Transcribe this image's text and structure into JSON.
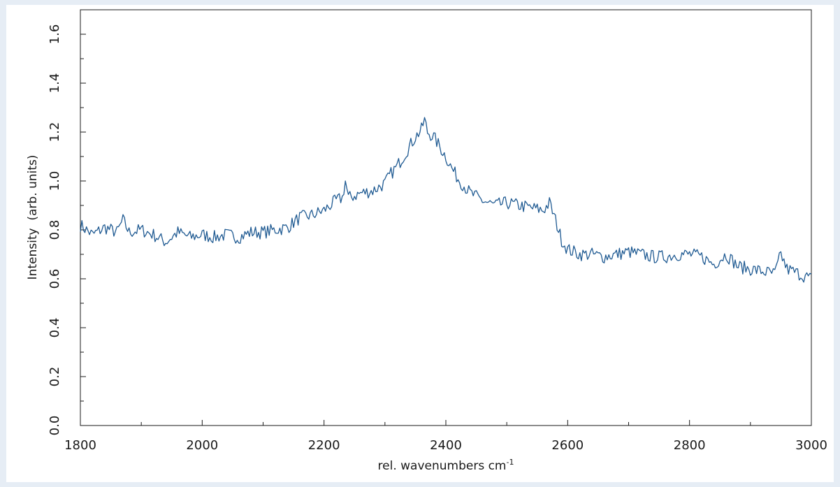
{
  "chart_data": {
    "type": "line",
    "xlabel": "rel. wavenumbers cm",
    "xlabel_sup": "-1",
    "ylabel": "Intensity  (arb. units)",
    "xlim": [
      1800,
      3000
    ],
    "ylim": [
      0.0,
      1.7
    ],
    "x_ticks": [
      "1800",
      "2000",
      "2200",
      "2400",
      "2600",
      "2800",
      "3000"
    ],
    "y_ticks": [
      "0.0",
      "0.2",
      "0.4",
      "0.6",
      "0.8",
      "1.0",
      "1.2",
      "1.4",
      "1.6"
    ],
    "grid": false,
    "line_color": "#1f5a92",
    "series": [
      {
        "x": [
          1800,
          1820,
          1840,
          1860,
          1870,
          1880,
          1900,
          1920,
          1940,
          1950,
          1960,
          1980,
          2000,
          2020,
          2040,
          2060,
          2080,
          2100,
          2120,
          2140,
          2160,
          2180,
          2200,
          2210,
          2220,
          2230,
          2235,
          2240,
          2260,
          2280,
          2300,
          2310,
          2320,
          2330,
          2340,
          2350,
          2360,
          2365,
          2370,
          2380,
          2390,
          2400,
          2410,
          2420,
          2440,
          2460,
          2480,
          2500,
          2520,
          2540,
          2560,
          2570,
          2580,
          2590,
          2600,
          2620,
          2640,
          2660,
          2680,
          2700,
          2720,
          2740,
          2760,
          2780,
          2800,
          2820,
          2840,
          2860,
          2880,
          2900,
          2920,
          2940,
          2950,
          2960,
          2980,
          3000
        ],
        "y": [
          0.82,
          0.78,
          0.81,
          0.79,
          0.84,
          0.79,
          0.8,
          0.78,
          0.75,
          0.77,
          0.79,
          0.77,
          0.78,
          0.77,
          0.78,
          0.77,
          0.79,
          0.79,
          0.8,
          0.81,
          0.85,
          0.86,
          0.88,
          0.9,
          0.92,
          0.93,
          1.0,
          0.93,
          0.95,
          0.96,
          0.99,
          1.03,
          1.06,
          1.1,
          1.14,
          1.18,
          1.21,
          1.25,
          1.2,
          1.18,
          1.14,
          1.1,
          1.05,
          1.01,
          0.95,
          0.92,
          0.9,
          0.91,
          0.9,
          0.89,
          0.88,
          0.91,
          0.84,
          0.76,
          0.72,
          0.7,
          0.7,
          0.69,
          0.7,
          0.71,
          0.7,
          0.69,
          0.69,
          0.7,
          0.7,
          0.69,
          0.66,
          0.7,
          0.65,
          0.64,
          0.63,
          0.62,
          0.7,
          0.64,
          0.62,
          0.6
        ]
      }
    ]
  }
}
